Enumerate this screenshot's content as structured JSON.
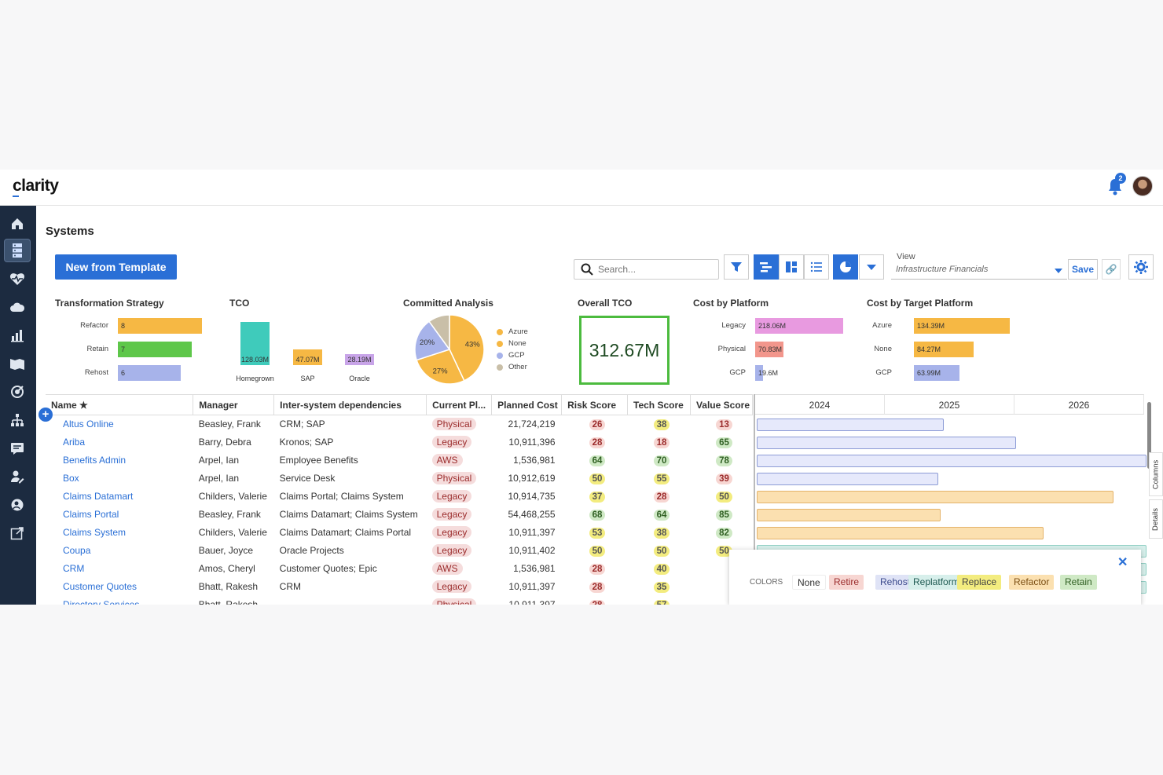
{
  "app": {
    "logo": "clarity",
    "notification_count": "2"
  },
  "page": {
    "title": "Systems",
    "new_button": "New from Template"
  },
  "toolbar": {
    "search_placeholder": "Search...",
    "view_label": "View",
    "view_value": "Infrastructure Financials",
    "save_label": "Save"
  },
  "widgets": {
    "transformation": {
      "title": "Transformation Strategy",
      "items": [
        {
          "label": "Refactor",
          "value": "8",
          "color": "#f6b844",
          "frac": 1.0
        },
        {
          "label": "Retain",
          "value": "7",
          "color": "#5ec74a",
          "frac": 0.875
        },
        {
          "label": "Rehost",
          "value": "6",
          "color": "#a7b3ea",
          "frac": 0.75
        }
      ]
    },
    "tco": {
      "title": "TCO",
      "items": [
        {
          "label": "Homegrown",
          "value": "128.03M",
          "color": "#3fcbbb",
          "raw": 128.03
        },
        {
          "label": "SAP",
          "value": "47.07M",
          "color": "#f6b844",
          "raw": 47.07
        },
        {
          "label": "Oracle",
          "value": "28.19M",
          "color": "#c8a4e8",
          "raw": 28.19
        }
      ]
    },
    "committed": {
      "title": "Committed Analysis",
      "slices": [
        {
          "label": "43%",
          "value": 43,
          "color": "#f6b844"
        },
        {
          "label": "27%",
          "value": 27,
          "color": "#f6b844"
        },
        {
          "label": "20%",
          "value": 20,
          "color": "#a7b3ea"
        },
        {
          "label": "",
          "value": 10,
          "color": "#c9bfa8"
        }
      ],
      "legend": [
        {
          "label": "Azure",
          "color": "#f6b844"
        },
        {
          "label": "None",
          "color": "#f6b844"
        },
        {
          "label": "GCP",
          "color": "#a7b3ea"
        },
        {
          "label": "Other",
          "color": "#c9bfa8"
        }
      ]
    },
    "overall": {
      "title": "Overall TCO",
      "value": "312.67M"
    },
    "platform": {
      "title": "Cost by Platform",
      "items": [
        {
          "label": "Legacy",
          "value": "218.06M",
          "color": "#e89ae0",
          "frac": 1.0
        },
        {
          "label": "Physical",
          "value": "70.83M",
          "color": "#f2968c",
          "frac": 0.325
        },
        {
          "label": "GCP",
          "value": "19.6M",
          "color": "#a7b3ea",
          "frac": 0.09
        }
      ]
    },
    "target": {
      "title": "Cost by Target Platform",
      "items": [
        {
          "label": "Azure",
          "value": "134.39M",
          "color": "#f6b844",
          "frac": 1.0
        },
        {
          "label": "None",
          "value": "84.27M",
          "color": "#f6b844",
          "frac": 0.627
        },
        {
          "label": "GCP",
          "value": "63.99M",
          "color": "#a7b3ea",
          "frac": 0.476
        }
      ]
    }
  },
  "table": {
    "columns": [
      "Name ★",
      "Manager",
      "Inter-system dependencies",
      "Current Pl...",
      "Planned Cost",
      "Risk Score",
      "Tech Score",
      "Value Score"
    ],
    "rows": [
      {
        "name": "Altus Online",
        "manager": "Beasley, Frank",
        "deps": "CRM; SAP",
        "platform": "Physical",
        "cost": "21,724,219",
        "risk": "26",
        "tech": "38",
        "value": "13",
        "rc": "red",
        "tc": "yellow",
        "vc": "red",
        "gs": 0.0,
        "ge": 0.48,
        "gcolor": "#e6e9fb",
        "gborder": "#8d9cd6"
      },
      {
        "name": "Ariba",
        "manager": "Barry, Debra",
        "deps": "Kronos; SAP",
        "platform": "Legacy",
        "cost": "10,911,396",
        "risk": "28",
        "tech": "18",
        "value": "65",
        "rc": "red",
        "tc": "red",
        "vc": "green",
        "gs": 0.0,
        "ge": 0.665,
        "gcolor": "#e6e9fb",
        "gborder": "#8d9cd6"
      },
      {
        "name": "Benefits Admin",
        "manager": "Arpel, Ian",
        "deps": "Employee Benefits",
        "platform": "AWS",
        "cost": "1,536,981",
        "risk": "64",
        "tech": "70",
        "value": "78",
        "rc": "green",
        "tc": "green",
        "vc": "green",
        "gs": 0.0,
        "ge": 1.0,
        "gcolor": "#e6e9fb",
        "gborder": "#8d9cd6"
      },
      {
        "name": "Box",
        "manager": "Arpel, Ian",
        "deps": "Service Desk",
        "platform": "Physical",
        "cost": "10,912,619",
        "risk": "50",
        "tech": "55",
        "value": "39",
        "rc": "yellow",
        "tc": "yellow",
        "vc": "red",
        "gs": 0.0,
        "ge": 0.465,
        "gcolor": "#e6e9fb",
        "gborder": "#8d9cd6"
      },
      {
        "name": "Claims Datamart",
        "manager": "Childers, Valerie",
        "deps": "Claims Portal; Claims System",
        "platform": "Legacy",
        "cost": "10,914,735",
        "risk": "37",
        "tech": "28",
        "value": "50",
        "rc": "yellow",
        "tc": "red",
        "vc": "yellow",
        "gs": 0.0,
        "ge": 0.915,
        "gcolor": "#fbe0b0",
        "gborder": "#e4b36a"
      },
      {
        "name": "Claims Portal",
        "manager": "Beasley, Frank",
        "deps": "Claims Datamart; Claims System",
        "platform": "Legacy",
        "cost": "54,468,255",
        "risk": "68",
        "tech": "64",
        "value": "85",
        "rc": "green",
        "tc": "green",
        "vc": "green",
        "gs": 0.0,
        "ge": 0.472,
        "gcolor": "#fbe0b0",
        "gborder": "#e4b36a"
      },
      {
        "name": "Claims System",
        "manager": "Childers, Valerie",
        "deps": "Claims Datamart; Claims Portal",
        "platform": "Legacy",
        "cost": "10,911,397",
        "risk": "53",
        "tech": "38",
        "value": "82",
        "rc": "yellow",
        "tc": "yellow",
        "vc": "green",
        "gs": 0.0,
        "ge": 0.735,
        "gcolor": "#fbe0b0",
        "gborder": "#e4b36a"
      },
      {
        "name": "Coupa",
        "manager": "Bauer, Joyce",
        "deps": "Oracle Projects",
        "platform": "Legacy",
        "cost": "10,911,402",
        "risk": "50",
        "tech": "50",
        "value": "50",
        "rc": "yellow",
        "tc": "yellow",
        "vc": "yellow",
        "gs": 0.0,
        "ge": 1.0,
        "gcolor": "#d7efeb",
        "gborder": "#90cfc4"
      },
      {
        "name": "CRM",
        "manager": "Amos, Cheryl",
        "deps": "Customer Quotes; Epic",
        "platform": "AWS",
        "cost": "1,536,981",
        "risk": "28",
        "tech": "40",
        "value": "",
        "rc": "red",
        "tc": "yellow",
        "vc": "",
        "gs": 0.0,
        "ge": 1.0,
        "gcolor": "#d7efeb",
        "gborder": "#90cfc4"
      },
      {
        "name": "Customer Quotes",
        "manager": "Bhatt, Rakesh",
        "deps": "CRM",
        "platform": "Legacy",
        "cost": "10,911,397",
        "risk": "28",
        "tech": "35",
        "value": "",
        "rc": "red",
        "tc": "yellow",
        "vc": "",
        "gs": 0.0,
        "ge": 1.0,
        "gcolor": "#d7efeb",
        "gborder": "#90cfc4"
      },
      {
        "name": "Directory Services",
        "manager": "Bhatt, Rakesh",
        "deps": "",
        "platform": "Physical",
        "cost": "10,911,397",
        "risk": "28",
        "tech": "57",
        "value": "",
        "rc": "red",
        "tc": "yellow",
        "vc": "",
        "gs": 0.0,
        "ge": 0.5,
        "gcolor": "#e6e9fb",
        "gborder": "#8d9cd6"
      }
    ]
  },
  "gantt": {
    "years": [
      "2024",
      "2025",
      "2026"
    ]
  },
  "colors_panel": {
    "label": "COLORS",
    "chips": [
      {
        "label": "None",
        "bg": "#ffffff",
        "fg": "#333333"
      },
      {
        "label": "Retire",
        "bg": "#f7d6d2",
        "fg": "#9b2c2c"
      },
      {
        "label": "Rehost",
        "bg": "#dfe3f6",
        "fg": "#3b4a8c"
      },
      {
        "label": "Replatform",
        "bg": "#d7efeb",
        "fg": "#1f5a52"
      },
      {
        "label": "Replace",
        "bg": "#f3ec7f",
        "fg": "#444444"
      },
      {
        "label": "Refactor",
        "bg": "#fbe0b0",
        "fg": "#7a4d12"
      },
      {
        "label": "Retain",
        "bg": "#cfe9c5",
        "fg": "#2f5f22"
      }
    ]
  },
  "side_tabs": {
    "columns": "Columns",
    "details": "Details"
  }
}
